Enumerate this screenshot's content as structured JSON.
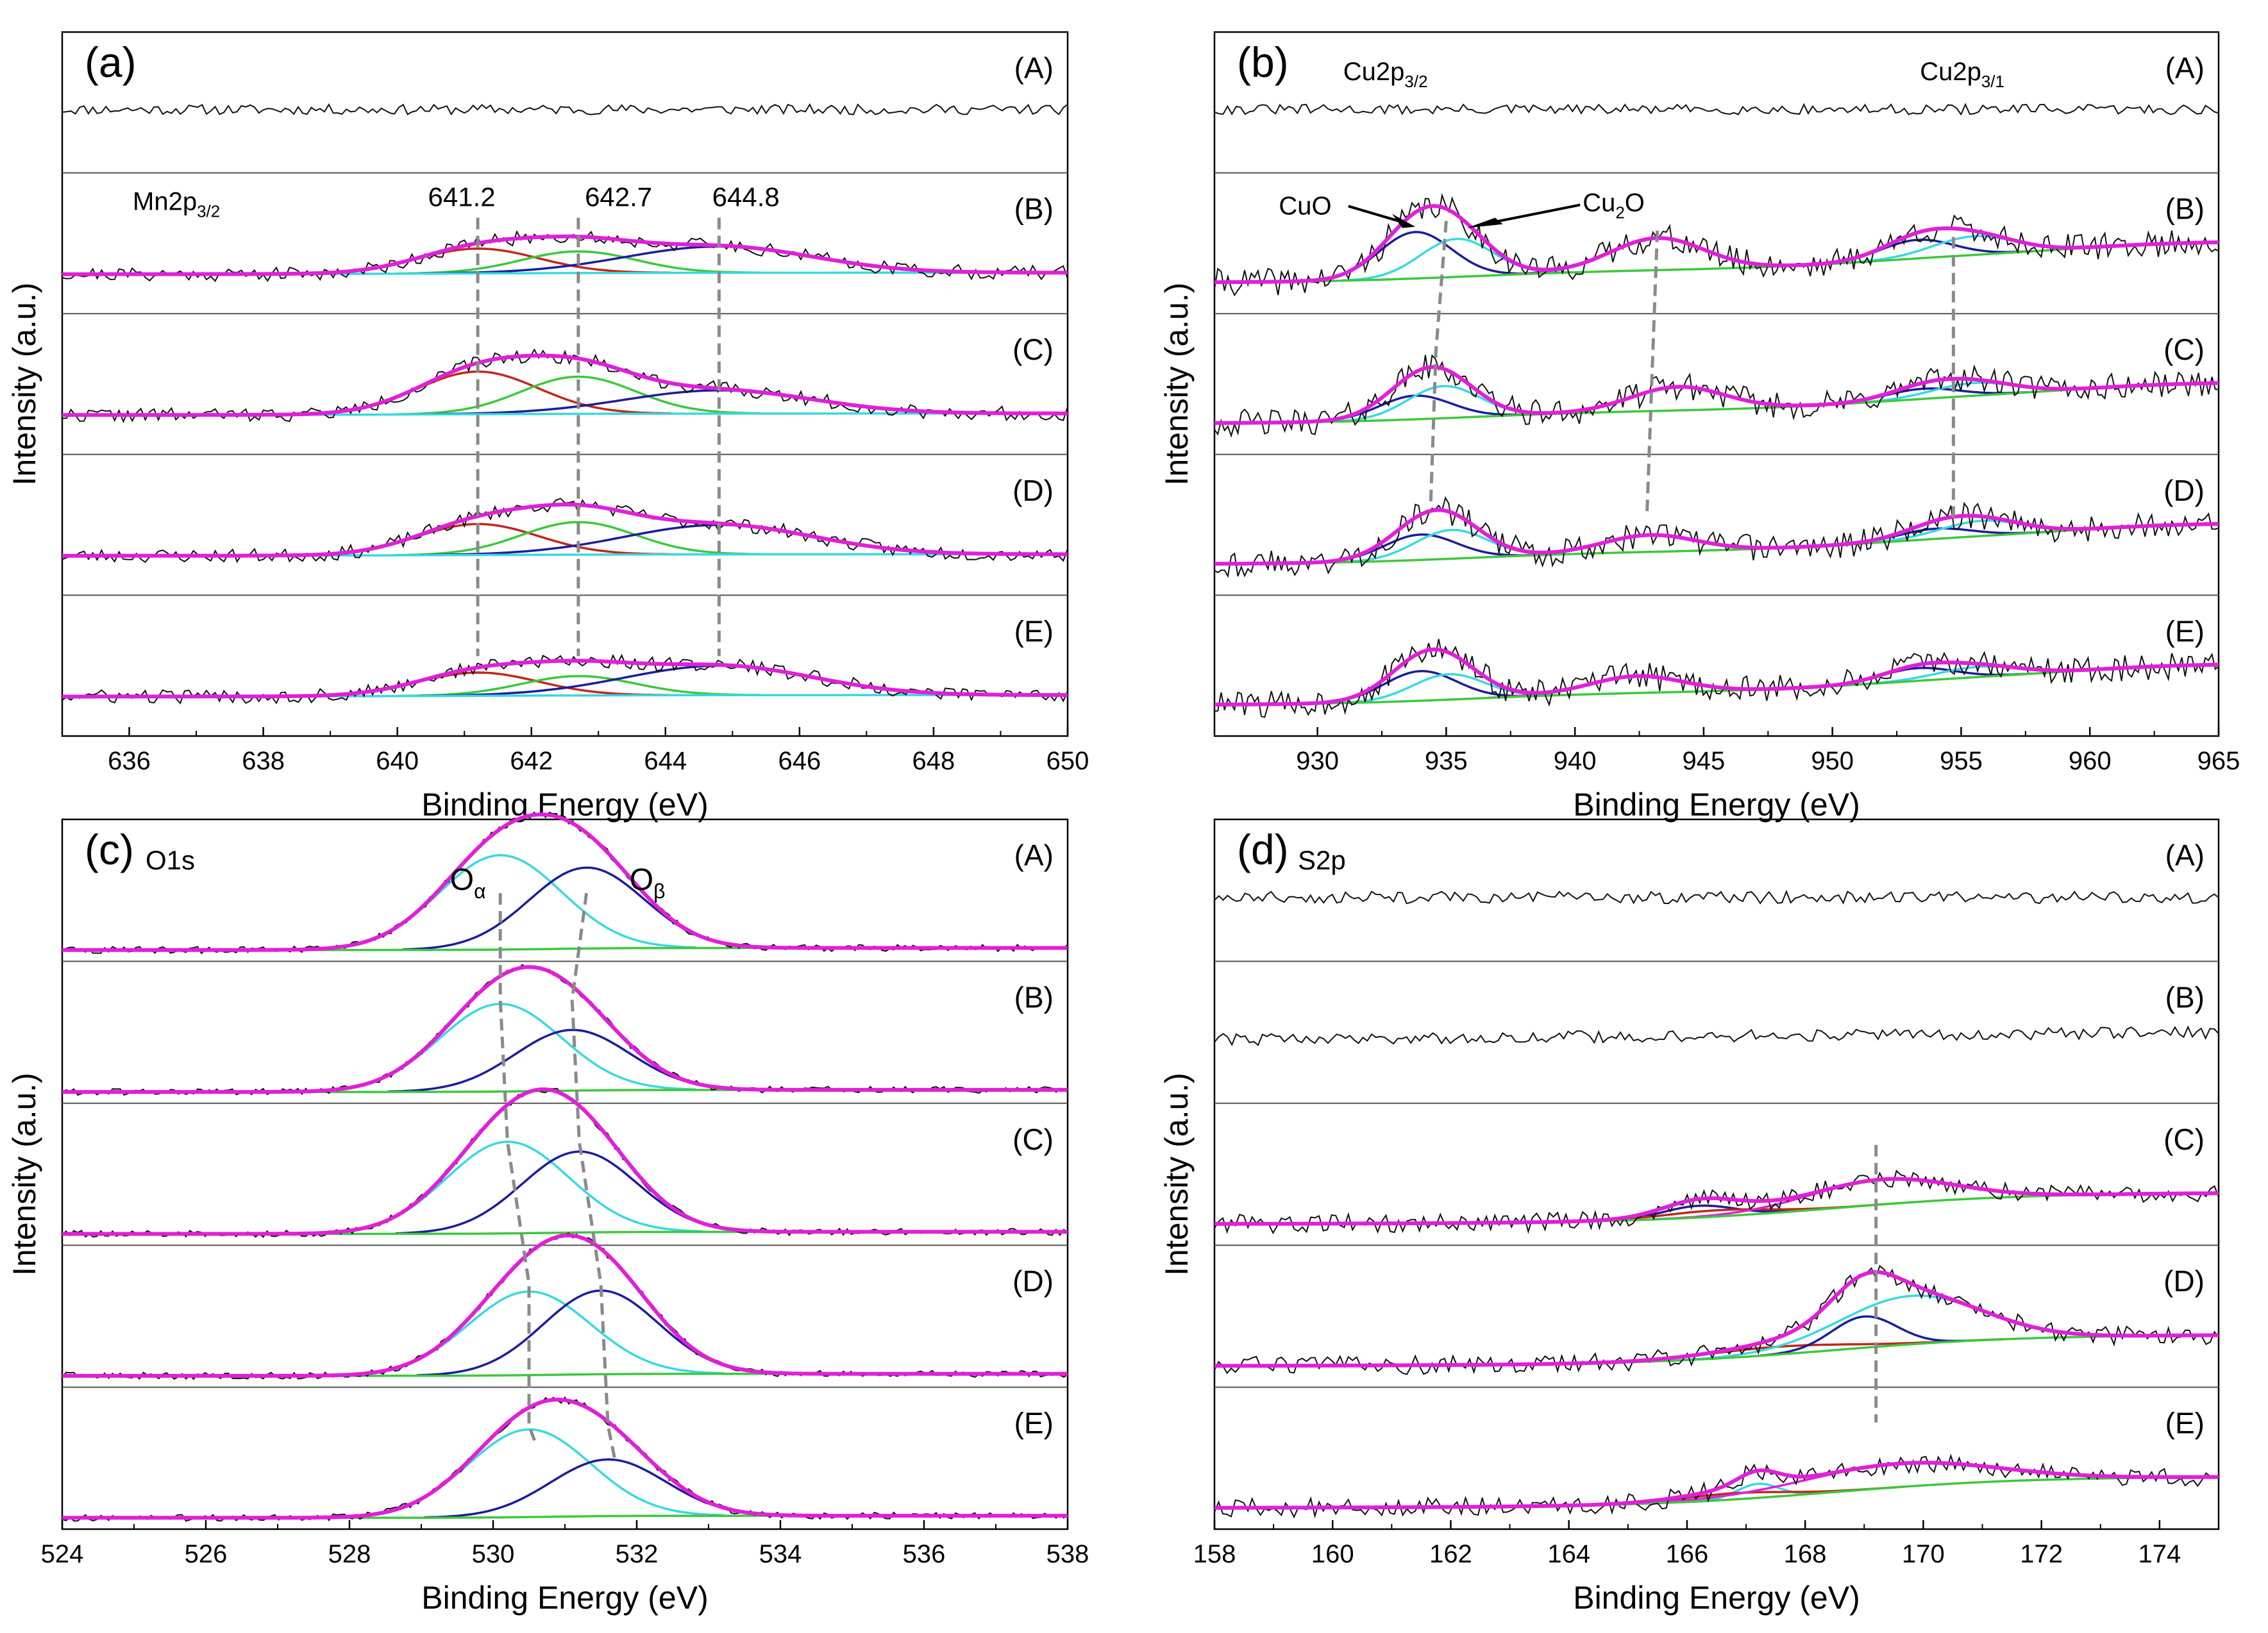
{
  "figure": {
    "colors": {
      "raw": "#111111",
      "envelope": "#e020d8",
      "red": "#c0281c",
      "green": "#3cc83c",
      "navy": "#1c1c9c",
      "cyan": "#38d8e0",
      "background_line": "#3cc83c",
      "guide": "#8a8a8a"
    }
  },
  "chart_data": [
    {
      "id": "a",
      "type": "line",
      "panel_label": "(a)",
      "title": "Mn2p3/2",
      "title_main": "Mn2p",
      "title_sub": "3/2",
      "xlabel": "Binding Energy  (eV)",
      "ylabel": "Intensity   (a.u.)",
      "xlim": [
        635,
        650
      ],
      "xticks": [
        "636",
        "638",
        "640",
        "642",
        "644",
        "646",
        "648",
        "650"
      ],
      "xtick_values": [
        636,
        638,
        640,
        642,
        644,
        646,
        648,
        650
      ],
      "rows": [
        "(A)",
        "(B)",
        "(C)",
        "(D)",
        "(E)"
      ],
      "peak_labels": [
        "641.2",
        "642.7",
        "644.8"
      ],
      "peaks": [
        {
          "name": "641.2",
          "color": "red",
          "center": 641.2
        },
        {
          "name": "642.7",
          "color": "green",
          "center": 642.7
        },
        {
          "name": "644.8",
          "color": "navy",
          "center": 644.8
        }
      ],
      "row_heights": [
        [
          0,
          0,
          0
        ],
        [
          0.32,
          0.28,
          0.34
        ],
        [
          0.55,
          0.48,
          0.3
        ],
        [
          0.4,
          0.42,
          0.38
        ],
        [
          0.3,
          0.25,
          0.38
        ]
      ],
      "row_widths": [
        0.9,
        0.85,
        1.4
      ],
      "guide_lines": [
        641.2,
        642.7,
        644.8
      ]
    },
    {
      "id": "b",
      "type": "line",
      "panel_label": "(b)",
      "titles": [
        {
          "main": "Cu2p",
          "sub": "3/2"
        },
        {
          "main": "Cu2p",
          "sub": "3/1"
        }
      ],
      "annotations": [
        {
          "main": "CuO",
          "sub": ""
        },
        {
          "main": "Cu",
          "sub": "2",
          "tail": "O"
        }
      ],
      "xlabel": "Binding Energy  (eV)",
      "ylabel": "Intensity   (a.u.)",
      "xlim": [
        926,
        965
      ],
      "xticks": [
        "930",
        "935",
        "940",
        "945",
        "950",
        "955",
        "960",
        "965"
      ],
      "xtick_values": [
        930,
        935,
        940,
        945,
        950,
        955,
        960,
        965
      ],
      "rows": [
        "(A)",
        "(B)",
        "(C)",
        "(D)",
        "(E)"
      ],
      "guide_lines": [
        934.6,
        943.0,
        954.7
      ]
    },
    {
      "id": "c",
      "type": "line",
      "panel_label": "(c)",
      "title": "O1s",
      "annotations": [
        {
          "main": "O",
          "sub": "α"
        },
        {
          "main": "O",
          "sub": "β"
        }
      ],
      "xlabel": "Binding Energy  (eV)",
      "ylabel": "Intensity   (a.u.)",
      "xlim": [
        524,
        538
      ],
      "xticks": [
        "524",
        "526",
        "528",
        "530",
        "532",
        "534",
        "536",
        "538"
      ],
      "xtick_values": [
        524,
        526,
        528,
        530,
        532,
        534,
        536,
        538
      ],
      "rows": [
        "(A)",
        "(B)",
        "(C)",
        "(D)",
        "(E)"
      ],
      "peaks": [
        {
          "name": "Oα",
          "color": "cyan"
        },
        {
          "name": "Oβ",
          "color": "navy"
        }
      ],
      "row_centers": [
        [
          530.1,
          531.3
        ],
        [
          530.1,
          531.1
        ],
        [
          530.2,
          531.2
        ],
        [
          530.5,
          531.5
        ],
        [
          530.5,
          531.6
        ]
      ],
      "row_heights": [
        [
          0.7,
          0.6
        ],
        [
          0.65,
          0.45
        ],
        [
          0.68,
          0.6
        ],
        [
          0.62,
          0.62
        ],
        [
          0.65,
          0.42
        ]
      ]
    },
    {
      "id": "d",
      "type": "line",
      "panel_label": "(d)",
      "title": "S2p",
      "xlabel": "Binding Energy  (eV)",
      "ylabel": "Intensity   (a.u.)",
      "xlim": [
        158,
        175
      ],
      "xticks": [
        "158",
        "160",
        "162",
        "164",
        "166",
        "168",
        "170",
        "172",
        "174"
      ],
      "xtick_values": [
        158,
        160,
        162,
        164,
        166,
        168,
        170,
        172,
        174
      ],
      "rows": [
        "(A)",
        "(B)",
        "(C)",
        "(D)",
        "(E)"
      ],
      "guide_lines": [
        169.2
      ]
    }
  ]
}
